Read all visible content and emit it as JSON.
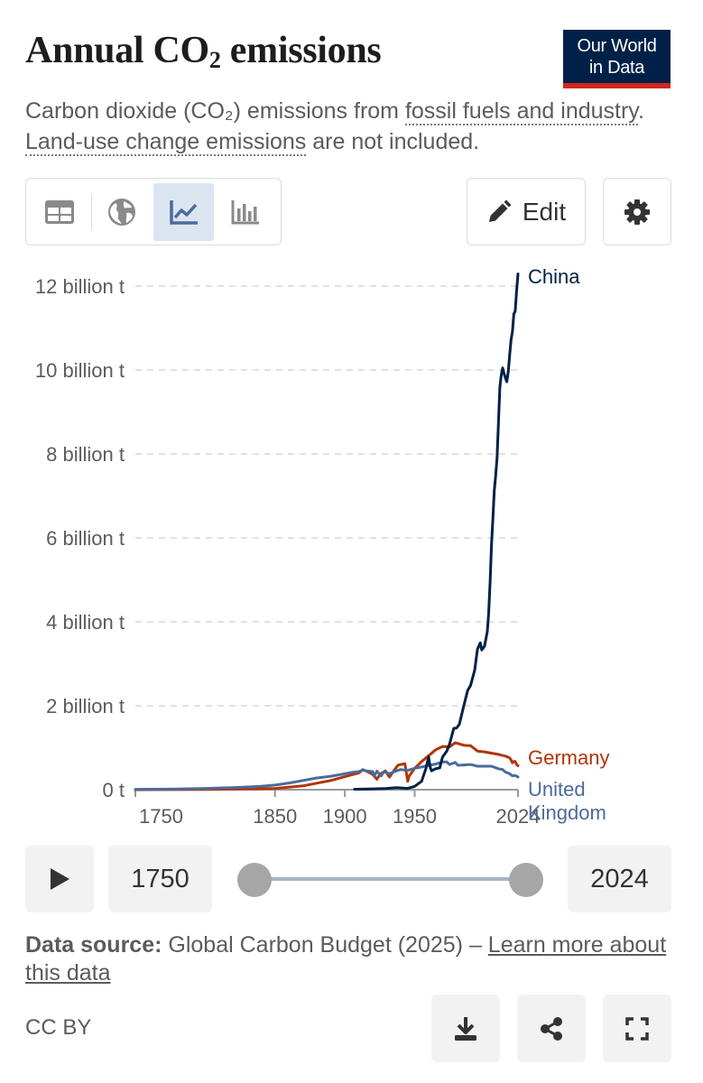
{
  "header": {
    "title_main": "Annual CO",
    "title_sub": "2",
    "title_end": " emissions",
    "logo_line1": "Our World",
    "logo_line2": "in Data"
  },
  "subtitle": {
    "part1": "Carbon dioxide (CO₂) emissions from ",
    "link1": "fossil fuels and industry",
    "part2": ". ",
    "link2": "Land-use change emissions",
    "part3": " are not included."
  },
  "toolbar": {
    "tabs": [
      {
        "icon": "table-icon",
        "active": false
      },
      {
        "icon": "globe-icon",
        "active": false
      },
      {
        "icon": "line-chart-icon",
        "active": true
      },
      {
        "icon": "bar-chart-icon",
        "active": false
      }
    ],
    "edit_label": "Edit",
    "edit_icon": "pencil-icon",
    "settings_icon": "gear-icon"
  },
  "chart_data": {
    "type": "line",
    "title": "Annual CO₂ emissions",
    "xlim": [
      1750,
      2024
    ],
    "ylim": [
      0,
      12000000000
    ],
    "x_ticks": [
      {
        "value": 1750,
        "label": "1750"
      },
      {
        "value": 1850,
        "label": "1850"
      },
      {
        "value": 1900,
        "label": "1900"
      },
      {
        "value": 1950,
        "label": "1950"
      },
      {
        "value": 2024,
        "label": "2024"
      }
    ],
    "y_ticks": [
      {
        "value": 0,
        "label": "0 t"
      },
      {
        "value": 2000000000,
        "label": "2 billion t"
      },
      {
        "value": 4000000000,
        "label": "4 billion t"
      },
      {
        "value": 6000000000,
        "label": "6 billion t"
      },
      {
        "value": 8000000000,
        "label": "8 billion t"
      },
      {
        "value": 10000000000,
        "label": "10 billion t"
      },
      {
        "value": 12000000000,
        "label": "12 billion t"
      }
    ],
    "grid": "horizontal-dashed",
    "legend": "end-of-line labels",
    "series": [
      {
        "name": "China",
        "color": "#002147",
        "label_lines": [
          "China"
        ],
        "points": [
          [
            1907,
            0.01
          ],
          [
            1920,
            0.02
          ],
          [
            1930,
            0.03
          ],
          [
            1937,
            0.05
          ],
          [
            1945,
            0.03
          ],
          [
            1950,
            0.08
          ],
          [
            1955,
            0.2
          ],
          [
            1958,
            0.5
          ],
          [
            1960,
            0.78
          ],
          [
            1961,
            0.55
          ],
          [
            1962,
            0.45
          ],
          [
            1965,
            0.5
          ],
          [
            1968,
            0.52
          ],
          [
            1970,
            0.78
          ],
          [
            1973,
            0.92
          ],
          [
            1975,
            1.09
          ],
          [
            1978,
            1.46
          ],
          [
            1980,
            1.47
          ],
          [
            1982,
            1.56
          ],
          [
            1985,
            1.97
          ],
          [
            1988,
            2.37
          ],
          [
            1990,
            2.48
          ],
          [
            1993,
            2.85
          ],
          [
            1995,
            3.35
          ],
          [
            1997,
            3.5
          ],
          [
            1998,
            3.33
          ],
          [
            2000,
            3.42
          ],
          [
            2002,
            3.77
          ],
          [
            2003,
            4.21
          ],
          [
            2004,
            4.95
          ],
          [
            2005,
            5.82
          ],
          [
            2006,
            6.43
          ],
          [
            2007,
            7.12
          ],
          [
            2008,
            7.47
          ],
          [
            2009,
            7.91
          ],
          [
            2010,
            8.72
          ],
          [
            2011,
            9.59
          ],
          [
            2012,
            9.87
          ],
          [
            2013,
            10.05
          ],
          [
            2014,
            9.92
          ],
          [
            2015,
            9.81
          ],
          [
            2016,
            9.72
          ],
          [
            2017,
            9.96
          ],
          [
            2018,
            10.34
          ],
          [
            2019,
            10.72
          ],
          [
            2020,
            10.91
          ],
          [
            2021,
            11.34
          ],
          [
            2022,
            11.4
          ],
          [
            2023,
            11.9
          ],
          [
            2024,
            12.29
          ]
        ]
      },
      {
        "name": "Germany",
        "color": "#b13507",
        "label_lines": [
          "Germany"
        ],
        "points": [
          [
            1750,
            0
          ],
          [
            1800,
            0.005
          ],
          [
            1830,
            0.02
          ],
          [
            1850,
            0.03
          ],
          [
            1870,
            0.09
          ],
          [
            1890,
            0.22
          ],
          [
            1900,
            0.31
          ],
          [
            1910,
            0.4
          ],
          [
            1913,
            0.48
          ],
          [
            1918,
            0.4
          ],
          [
            1920,
            0.36
          ],
          [
            1923,
            0.25
          ],
          [
            1925,
            0.36
          ],
          [
            1929,
            0.45
          ],
          [
            1932,
            0.3
          ],
          [
            1935,
            0.45
          ],
          [
            1938,
            0.58
          ],
          [
            1940,
            0.6
          ],
          [
            1943,
            0.62
          ],
          [
            1945,
            0.2
          ],
          [
            1946,
            0.32
          ],
          [
            1950,
            0.51
          ],
          [
            1955,
            0.67
          ],
          [
            1960,
            0.81
          ],
          [
            1965,
            0.95
          ],
          [
            1970,
            1.03
          ],
          [
            1975,
            1.02
          ],
          [
            1979,
            1.12
          ],
          [
            1985,
            1.06
          ],
          [
            1990,
            1.05
          ],
          [
            1995,
            0.92
          ],
          [
            2000,
            0.9
          ],
          [
            2005,
            0.87
          ],
          [
            2010,
            0.84
          ],
          [
            2015,
            0.8
          ],
          [
            2018,
            0.76
          ],
          [
            2019,
            0.71
          ],
          [
            2020,
            0.64
          ],
          [
            2021,
            0.67
          ],
          [
            2022,
            0.67
          ],
          [
            2023,
            0.6
          ],
          [
            2024,
            0.57
          ]
        ]
      },
      {
        "name": "United Kingdom",
        "color": "#4c6a9c",
        "label_lines": [
          "United",
          "Kingdom"
        ],
        "points": [
          [
            1750,
            0.009
          ],
          [
            1780,
            0.015
          ],
          [
            1800,
            0.03
          ],
          [
            1820,
            0.05
          ],
          [
            1840,
            0.08
          ],
          [
            1850,
            0.11
          ],
          [
            1860,
            0.16
          ],
          [
            1870,
            0.22
          ],
          [
            1880,
            0.28
          ],
          [
            1890,
            0.32
          ],
          [
            1900,
            0.38
          ],
          [
            1905,
            0.41
          ],
          [
            1910,
            0.43
          ],
          [
            1913,
            0.47
          ],
          [
            1915,
            0.45
          ],
          [
            1920,
            0.43
          ],
          [
            1921,
            0.32
          ],
          [
            1923,
            0.44
          ],
          [
            1926,
            0.33
          ],
          [
            1928,
            0.43
          ],
          [
            1932,
            0.38
          ],
          [
            1937,
            0.45
          ],
          [
            1940,
            0.48
          ],
          [
            1945,
            0.46
          ],
          [
            1950,
            0.51
          ],
          [
            1955,
            0.54
          ],
          [
            1960,
            0.58
          ],
          [
            1965,
            0.61
          ],
          [
            1970,
            0.66
          ],
          [
            1973,
            0.66
          ],
          [
            1975,
            0.6
          ],
          [
            1979,
            0.65
          ],
          [
            1981,
            0.58
          ],
          [
            1985,
            0.59
          ],
          [
            1990,
            0.6
          ],
          [
            1995,
            0.56
          ],
          [
            2000,
            0.56
          ],
          [
            2005,
            0.56
          ],
          [
            2010,
            0.5
          ],
          [
            2013,
            0.48
          ],
          [
            2015,
            0.42
          ],
          [
            2018,
            0.38
          ],
          [
            2020,
            0.33
          ],
          [
            2022,
            0.34
          ],
          [
            2024,
            0.3
          ]
        ]
      }
    ]
  },
  "timeline": {
    "play_icon": "play-icon",
    "start_year": "1750",
    "end_year": "2024"
  },
  "footer": {
    "source_label": "Data source:",
    "source_text": " Global Carbon Budget (2025) – ",
    "learn_more": "Learn more about this data",
    "license": "CC BY",
    "download_icon": "download-icon",
    "share_icon": "share-icon",
    "fullscreen_icon": "fullscreen-icon"
  }
}
